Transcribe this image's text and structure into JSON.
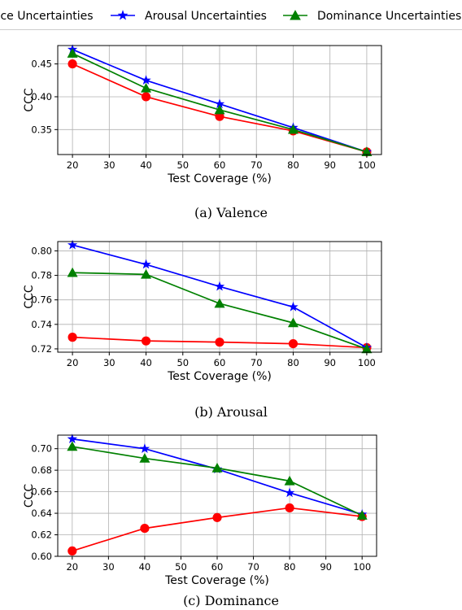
{
  "legend": [
    {
      "label": "Valence Uncertainties",
      "color": "#ff0000",
      "marker": "circle"
    },
    {
      "label": "Arousal Uncertainties",
      "color": "#0000ff",
      "marker": "star"
    },
    {
      "label": "Dominance Uncertainties",
      "color": "#008000",
      "marker": "triangle"
    }
  ],
  "chart_data": [
    {
      "type": "line",
      "caption": "(a)  Valence",
      "xlabel": "Test Coverage (%)",
      "ylabel": "CCC",
      "x": [
        20,
        40,
        60,
        80,
        100
      ],
      "xticks": [
        20,
        30,
        40,
        50,
        60,
        70,
        80,
        90,
        100
      ],
      "xlim": [
        16,
        104
      ],
      "yticks": [
        0.35,
        0.4,
        0.45
      ],
      "ytick_labels": [
        "0.35",
        "0.40",
        "0.45"
      ],
      "ylim": [
        0.312,
        0.478
      ],
      "grid": true,
      "series": [
        {
          "name": "Valence Uncertainties",
          "color": "#ff0000",
          "marker": "circle",
          "values": [
            0.45,
            0.4,
            0.37,
            0.348,
            0.316
          ]
        },
        {
          "name": "Arousal Uncertainties",
          "color": "#0000ff",
          "marker": "star",
          "values": [
            0.472,
            0.425,
            0.389,
            0.353,
            0.316
          ]
        },
        {
          "name": "Dominance Uncertainties",
          "color": "#008000",
          "marker": "triangle",
          "values": [
            0.466,
            0.413,
            0.38,
            0.35,
            0.316
          ]
        }
      ]
    },
    {
      "type": "line",
      "caption": "(b)  Arousal",
      "xlabel": "Test Coverage (%)",
      "ylabel": "CCC",
      "x": [
        20,
        40,
        60,
        80,
        100
      ],
      "xticks": [
        20,
        30,
        40,
        50,
        60,
        70,
        80,
        90,
        100
      ],
      "xlim": [
        16,
        104
      ],
      "yticks": [
        0.72,
        0.74,
        0.76,
        0.78,
        0.8
      ],
      "ytick_labels": [
        "0.72",
        "0.74",
        "0.76",
        "0.78",
        "0.80"
      ],
      "ylim": [
        0.7173,
        0.8076
      ],
      "grid": true,
      "series": [
        {
          "name": "Valence Uncertainties",
          "color": "#ff0000",
          "marker": "circle",
          "values": [
            0.7295,
            0.7265,
            0.7255,
            0.7242,
            0.721
          ]
        },
        {
          "name": "Arousal Uncertainties",
          "color": "#0000ff",
          "marker": "star",
          "values": [
            0.8048,
            0.7889,
            0.7709,
            0.7542,
            0.721
          ]
        },
        {
          "name": "Dominance Uncertainties",
          "color": "#008000",
          "marker": "triangle",
          "values": [
            0.7822,
            0.7808,
            0.757,
            0.7412,
            0.7199
          ]
        }
      ]
    },
    {
      "type": "line",
      "caption": "(c)  Dominance",
      "xlabel": "Test Coverage (%)",
      "ylabel": "CCC",
      "x": [
        20,
        40,
        60,
        80,
        100
      ],
      "xticks": [
        20,
        30,
        40,
        50,
        60,
        70,
        80,
        90,
        100
      ],
      "xlim": [
        16,
        104
      ],
      "yticks": [
        0.6,
        0.62,
        0.64,
        0.66,
        0.68,
        0.7
      ],
      "ytick_labels": [
        "0.60",
        "0.62",
        "0.64",
        "0.66",
        "0.68",
        "0.70"
      ],
      "ylim": [
        0.6,
        0.7126
      ],
      "grid": true,
      "series": [
        {
          "name": "Valence Uncertainties",
          "color": "#ff0000",
          "marker": "circle",
          "values": [
            0.605,
            0.626,
            0.636,
            0.645,
            0.637
          ]
        },
        {
          "name": "Arousal Uncertainties",
          "color": "#0000ff",
          "marker": "star",
          "values": [
            0.709,
            0.7,
            0.681,
            0.659,
            0.639
          ]
        },
        {
          "name": "Dominance Uncertainties",
          "color": "#008000",
          "marker": "triangle",
          "values": [
            0.702,
            0.691,
            0.682,
            0.67,
            0.638
          ]
        }
      ]
    }
  ]
}
